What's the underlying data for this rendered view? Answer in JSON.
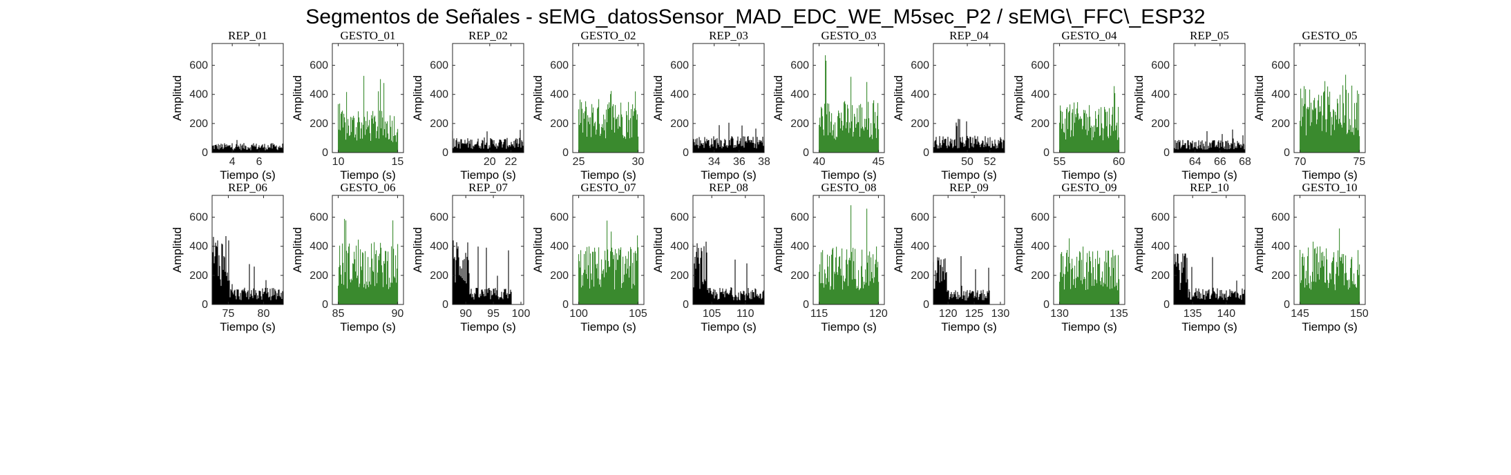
{
  "figure": {
    "suptitle": "Segmentos de Señales - sEMG_datosSensor_MAD_EDC_WE_M5sec_P2 / sEMG\\_FFC\\_ESP32"
  },
  "colors": {
    "rep": "#000000",
    "gesto": "#3a8a2e"
  },
  "chart_data": [
    {
      "type": "bar",
      "title": "REP_01",
      "kind": "rep",
      "xlim": [
        2.5,
        7.8
      ],
      "xticks": [
        4,
        6
      ],
      "ylim": [
        0,
        750
      ],
      "yticks": [
        0,
        200,
        400,
        600
      ],
      "xlabel": "Tiempo (s)",
      "ylabel": "Amplitud",
      "level": [
        45
      ],
      "peak": 120
    },
    {
      "type": "bar",
      "title": "GESTO_01",
      "kind": "gesto",
      "xlim": [
        9.5,
        15.5
      ],
      "xticks": [
        10,
        15
      ],
      "ylim": [
        0,
        750
      ],
      "yticks": [
        0,
        200,
        400,
        600
      ],
      "xlabel": "Tiempo (s)",
      "ylabel": "Amplitud",
      "level": [
        200
      ],
      "peak": 530
    },
    {
      "type": "bar",
      "title": "REP_02",
      "kind": "rep",
      "xlim": [
        16.5,
        23.2
      ],
      "xticks": [
        20,
        22
      ],
      "ylim": [
        0,
        750
      ],
      "yticks": [
        0,
        200,
        400,
        600
      ],
      "xlabel": "Tiempo (s)",
      "ylabel": "Amplitud",
      "level": [
        70
      ],
      "peak": 160
    },
    {
      "type": "bar",
      "title": "GESTO_02",
      "kind": "gesto",
      "xlim": [
        24.5,
        30.5
      ],
      "xticks": [
        25,
        30
      ],
      "ylim": [
        0,
        750
      ],
      "yticks": [
        0,
        200,
        400,
        600
      ],
      "xlabel": "Tiempo (s)",
      "ylabel": "Amplitud",
      "level": [
        260
      ],
      "peak": 560
    },
    {
      "type": "bar",
      "title": "REP_03",
      "kind": "rep",
      "xlim": [
        32.3,
        38
      ],
      "xticks": [
        34,
        36,
        38
      ],
      "ylim": [
        0,
        750
      ],
      "yticks": [
        0,
        200,
        400,
        600
      ],
      "xlabel": "Tiempo (s)",
      "ylabel": "Amplitud",
      "level": [
        80
      ],
      "peak": 220
    },
    {
      "type": "bar",
      "title": "GESTO_03",
      "kind": "gesto",
      "xlim": [
        39.5,
        45.5
      ],
      "xticks": [
        40,
        45
      ],
      "ylim": [
        0,
        750
      ],
      "yticks": [
        0,
        200,
        400,
        600
      ],
      "xlabel": "Tiempo (s)",
      "ylabel": "Amplitud",
      "level": [
        250
      ],
      "peak": 700
    },
    {
      "type": "bar",
      "title": "REP_04",
      "kind": "rep",
      "xlim": [
        47,
        53.3
      ],
      "xticks": [
        50,
        52
      ],
      "ylim": [
        0,
        750
      ],
      "yticks": [
        0,
        200,
        400,
        600
      ],
      "xlabel": "Tiempo (s)",
      "ylabel": "Amplitud",
      "level": [
        80
      ],
      "peak": 240
    },
    {
      "type": "bar",
      "title": "GESTO_04",
      "kind": "gesto",
      "xlim": [
        54.5,
        60.5
      ],
      "xticks": [
        55,
        60
      ],
      "ylim": [
        0,
        750
      ],
      "yticks": [
        0,
        200,
        400,
        600
      ],
      "xlabel": "Tiempo (s)",
      "ylabel": "Amplitud",
      "level": [
        240
      ],
      "peak": 530
    },
    {
      "type": "bar",
      "title": "REP_05",
      "kind": "rep",
      "xlim": [
        62.3,
        68
      ],
      "xticks": [
        64,
        66,
        68
      ],
      "ylim": [
        0,
        750
      ],
      "yticks": [
        0,
        200,
        400,
        600
      ],
      "xlabel": "Tiempo (s)",
      "ylabel": "Amplitud",
      "level": [
        60
      ],
      "peak": 160
    },
    {
      "type": "bar",
      "title": "GESTO_05",
      "kind": "gesto",
      "xlim": [
        69.5,
        75.5
      ],
      "xticks": [
        70,
        75
      ],
      "ylim": [
        0,
        750
      ],
      "yticks": [
        0,
        200,
        400,
        600
      ],
      "xlabel": "Tiempo (s)",
      "ylabel": "Amplitud",
      "level": [
        320
      ],
      "peak": 660
    },
    {
      "type": "bar",
      "title": "REP_06",
      "kind": "rep",
      "xlim": [
        72.7,
        82.8
      ],
      "xticks": [
        75,
        80
      ],
      "ylim": [
        0,
        750
      ],
      "yticks": [
        0,
        200,
        400,
        600
      ],
      "xlabel": "Tiempo (s)",
      "ylabel": "Amplitud",
      "level": [
        350,
        80
      ],
      "split": 75.2,
      "peak": 470
    },
    {
      "type": "bar",
      "title": "GESTO_06",
      "kind": "gesto",
      "xlim": [
        84.5,
        90.5
      ],
      "xticks": [
        85,
        90
      ],
      "ylim": [
        0,
        750
      ],
      "yticks": [
        0,
        200,
        400,
        600
      ],
      "xlabel": "Tiempo (s)",
      "ylabel": "Amplitud",
      "level": [
        300
      ],
      "peak": 680
    },
    {
      "type": "bar",
      "title": "REP_07",
      "kind": "rep",
      "xlim": [
        87.6,
        100.5
      ],
      "xticks": [
        90,
        95,
        100
      ],
      "ylim": [
        0,
        750
      ],
      "yticks": [
        0,
        200,
        400,
        600
      ],
      "xlabel": "Tiempo (s)",
      "ylabel": "Amplitud",
      "level": [
        340,
        80
      ],
      "split": 90.7,
      "end": 98.2,
      "peak": 440
    },
    {
      "type": "bar",
      "title": "GESTO_07",
      "kind": "gesto",
      "xlim": [
        99.5,
        105.5
      ],
      "xticks": [
        100,
        105
      ],
      "ylim": [
        0,
        750
      ],
      "yticks": [
        0,
        200,
        400,
        600
      ],
      "xlabel": "Tiempo (s)",
      "ylabel": "Amplitud",
      "level": [
        280
      ],
      "peak": 590
    },
    {
      "type": "bar",
      "title": "REP_08",
      "kind": "rep",
      "xlim": [
        102.2,
        112.8
      ],
      "xticks": [
        105,
        110
      ],
      "ylim": [
        0,
        750
      ],
      "yticks": [
        0,
        200,
        400,
        600
      ],
      "xlabel": "Tiempo (s)",
      "ylabel": "Amplitud",
      "level": [
        300,
        80
      ],
      "split": 104.3,
      "peak": 470
    },
    {
      "type": "bar",
      "title": "GESTO_08",
      "kind": "gesto",
      "xlim": [
        114.5,
        120.5
      ],
      "xticks": [
        115,
        120
      ],
      "ylim": [
        0,
        750
      ],
      "yticks": [
        0,
        200,
        400,
        600
      ],
      "xlabel": "Tiempo (s)",
      "ylabel": "Amplitud",
      "level": [
        280
      ],
      "peak": 720
    },
    {
      "type": "bar",
      "title": "REP_09",
      "kind": "rep",
      "xlim": [
        117.2,
        130.8
      ],
      "xticks": [
        120,
        125,
        130
      ],
      "ylim": [
        0,
        750
      ],
      "yticks": [
        0,
        200,
        400,
        600
      ],
      "xlabel": "Tiempo (s)",
      "ylabel": "Amplitud",
      "level": [
        240,
        70
      ],
      "split": 119.8,
      "end": 127.9,
      "peak": 350
    },
    {
      "type": "bar",
      "title": "GESTO_09",
      "kind": "gesto",
      "xlim": [
        129.5,
        135.5
      ],
      "xticks": [
        130,
        135
      ],
      "ylim": [
        0,
        750
      ],
      "yticks": [
        0,
        200,
        400,
        600
      ],
      "xlabel": "Tiempo (s)",
      "ylabel": "Amplitud",
      "level": [
        260
      ],
      "peak": 550
    },
    {
      "type": "bar",
      "title": "REP_10",
      "kind": "rep",
      "xlim": [
        132.2,
        142.8
      ],
      "xticks": [
        135,
        140
      ],
      "ylim": [
        0,
        750
      ],
      "yticks": [
        0,
        200,
        400,
        600
      ],
      "xlabel": "Tiempo (s)",
      "ylabel": "Amplitud",
      "level": [
        280,
        80
      ],
      "split": 134.3,
      "peak": 350
    },
    {
      "type": "bar",
      "title": "GESTO_10",
      "kind": "gesto",
      "xlim": [
        144.5,
        150.5
      ],
      "xticks": [
        145,
        150
      ],
      "ylim": [
        0,
        750
      ],
      "yticks": [
        0,
        200,
        400,
        600
      ],
      "xlabel": "Tiempo (s)",
      "ylabel": "Amplitud",
      "level": [
        280
      ],
      "peak": 565
    }
  ]
}
